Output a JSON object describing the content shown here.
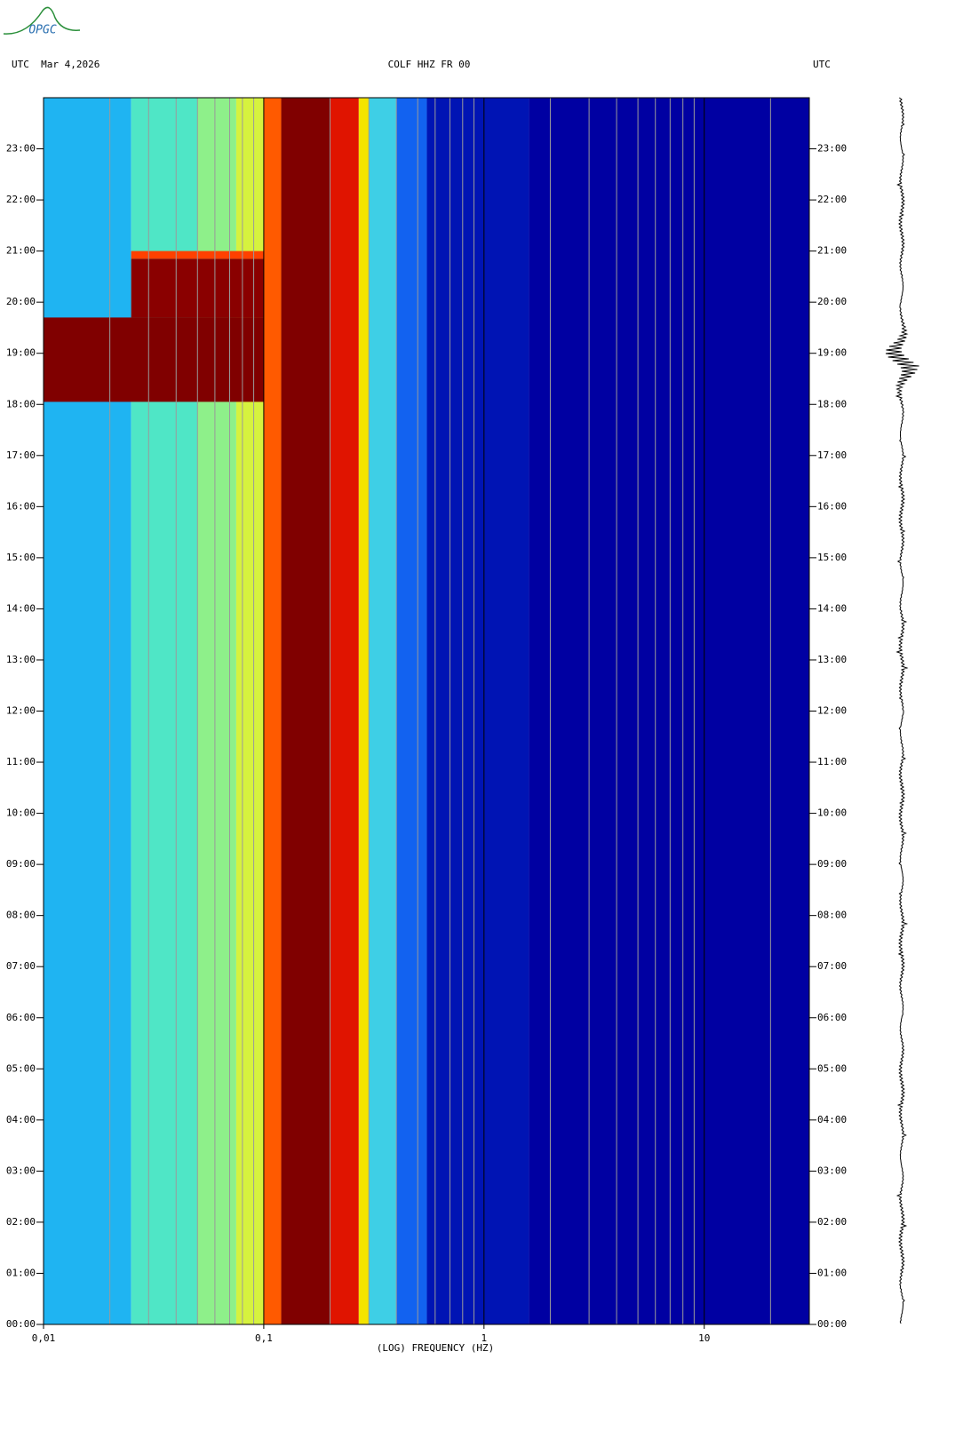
{
  "logo": "OPGC",
  "chart_data": {
    "type": "spectrogram",
    "title": "COLF HHZ FR 00",
    "left_label": "UTC  Mar 4,2026",
    "right_label": "UTC",
    "xlabel": "(LOG) FREQUENCY (HZ)",
    "xscale": "log",
    "xlim": [
      0.01,
      30
    ],
    "xticks": [
      {
        "value": 0.01,
        "label": "0,01"
      },
      {
        "value": 0.1,
        "label": "0,1"
      },
      1,
      10
    ],
    "xgrid": [
      0.02,
      0.03,
      0.04,
      0.05,
      0.06,
      0.07,
      0.08,
      0.09,
      0.2,
      0.3,
      0.4,
      0.5,
      0.6,
      0.7,
      0.8,
      0.9,
      2,
      3,
      4,
      5,
      6,
      7,
      8,
      9,
      20
    ],
    "ylim": [
      0,
      24
    ],
    "yticks": [
      {
        "value": 0,
        "label": "00:00"
      },
      {
        "value": 1,
        "label": "01:00"
      },
      {
        "value": 2,
        "label": "02:00"
      },
      {
        "value": 3,
        "label": "03:00"
      },
      {
        "value": 4,
        "label": "04:00"
      },
      {
        "value": 5,
        "label": "05:00"
      },
      {
        "value": 6,
        "label": "06:00"
      },
      {
        "value": 7,
        "label": "07:00"
      },
      {
        "value": 8,
        "label": "08:00"
      },
      {
        "value": 9,
        "label": "09:00"
      },
      {
        "value": 10,
        "label": "10:00"
      },
      {
        "value": 11,
        "label": "11:00"
      },
      {
        "value": 12,
        "label": "12:00"
      },
      {
        "value": 13,
        "label": "13:00"
      },
      {
        "value": 14,
        "label": "14:00"
      },
      {
        "value": 15,
        "label": "15:00"
      },
      {
        "value": 16,
        "label": "16:00"
      },
      {
        "value": 17,
        "label": "17:00"
      },
      {
        "value": 18,
        "label": "18:00"
      },
      {
        "value": 19,
        "label": "19:00"
      },
      {
        "value": 20,
        "label": "20:00"
      },
      {
        "value": 21,
        "label": "21:00"
      },
      {
        "value": 22,
        "label": "22:00"
      },
      {
        "value": 23,
        "label": "23:00"
      }
    ],
    "bands": [
      {
        "freq": [
          0.01,
          0.025
        ],
        "color": "#1fb4f2"
      },
      {
        "freq": [
          0.025,
          0.05
        ],
        "color": "#4fe6c6"
      },
      {
        "freq": [
          0.05,
          0.075
        ],
        "color": "#8ef08a"
      },
      {
        "freq": [
          0.075,
          0.1
        ],
        "color": "#d6f23e"
      },
      {
        "freq": [
          0.1,
          0.12
        ],
        "color": "#ff5a00"
      },
      {
        "freq": [
          0.12,
          0.2
        ],
        "color": "#800000"
      },
      {
        "freq": [
          0.2,
          0.27
        ],
        "color": "#e01400"
      },
      {
        "freq": [
          0.27,
          0.3
        ],
        "color": "#f4e400"
      },
      {
        "freq": [
          0.3,
          0.4
        ],
        "color": "#3ecfe6"
      },
      {
        "freq": [
          0.4,
          0.55
        ],
        "color": "#1262f0"
      },
      {
        "freq": [
          0.55,
          1.6
        ],
        "color": "#0014b4"
      },
      {
        "freq": [
          1.6,
          30
        ],
        "color": "#0000a2"
      }
    ],
    "events": [
      {
        "freq": [
          0.01,
          0.1
        ],
        "time": [
          18.05,
          19.7
        ],
        "color": "#800000"
      },
      {
        "freq": [
          0.025,
          0.1
        ],
        "time": [
          19.7,
          20.85
        ],
        "color": "#8a0000"
      },
      {
        "freq": [
          0.025,
          0.1
        ],
        "time": [
          20.85,
          21.0
        ],
        "color": "#ff4000"
      }
    ],
    "grid": true
  }
}
